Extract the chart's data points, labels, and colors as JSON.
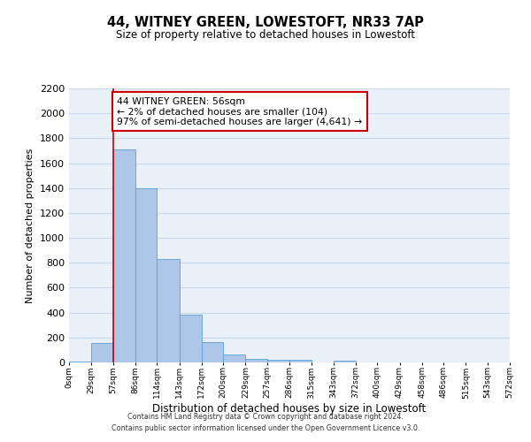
{
  "title": "44, WITNEY GREEN, LOWESTOFT, NR33 7AP",
  "subtitle": "Size of property relative to detached houses in Lowestoft",
  "xlabel": "Distribution of detached houses by size in Lowestoft",
  "ylabel": "Number of detached properties",
  "bin_edges": [
    0,
    29,
    57,
    86,
    114,
    143,
    172,
    200,
    229,
    257,
    286,
    315,
    343,
    372,
    400,
    429,
    458,
    486,
    515,
    543,
    572
  ],
  "bin_labels": [
    "0sqm",
    "29sqm",
    "57sqm",
    "86sqm",
    "114sqm",
    "143sqm",
    "172sqm",
    "200sqm",
    "229sqm",
    "257sqm",
    "286sqm",
    "315sqm",
    "343sqm",
    "372sqm",
    "400sqm",
    "429sqm",
    "458sqm",
    "486sqm",
    "515sqm",
    "543sqm",
    "572sqm"
  ],
  "bar_heights": [
    10,
    155,
    1710,
    1395,
    830,
    385,
    165,
    65,
    30,
    22,
    20,
    0,
    14,
    0,
    0,
    0,
    0,
    0,
    0,
    0
  ],
  "bar_color": "#aec6e8",
  "bar_edge_color": "#5a9fd4",
  "grid_color": "#c8d8e8",
  "property_line_x": 57,
  "property_line_color": "#cc0000",
  "annotation_line1": "44 WITNEY GREEN: 56sqm",
  "annotation_line2": "← 2% of detached houses are smaller (104)",
  "annotation_line3": "97% of semi-detached houses are larger (4,641) →",
  "annotation_box_color": "#cc0000",
  "ylim": [
    0,
    2200
  ],
  "yticks": [
    0,
    200,
    400,
    600,
    800,
    1000,
    1200,
    1400,
    1600,
    1800,
    2000,
    2200
  ],
  "footer_line1": "Contains HM Land Registry data © Crown copyright and database right 2024.",
  "footer_line2": "Contains public sector information licensed under the Open Government Licence v3.0.",
  "background_color": "#ffffff",
  "plot_bg_color": "#eaf0f8"
}
